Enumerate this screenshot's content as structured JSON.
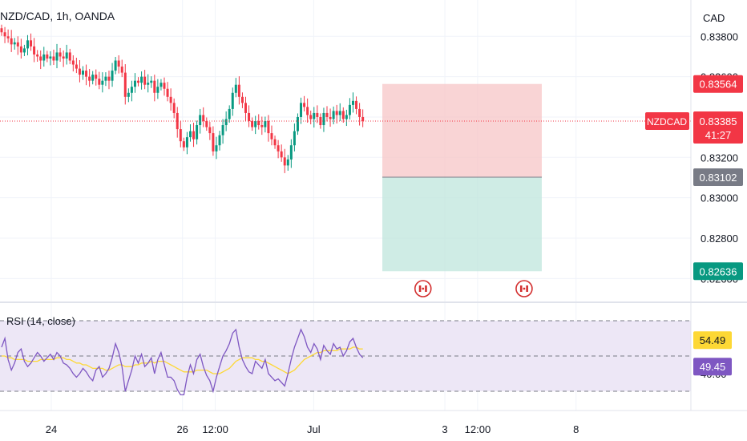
{
  "chart_data": {
    "type": "candlestick",
    "title": "NZD/CAD, 1h, OANDA",
    "currency_label": "CAD",
    "symbol_tag": "NZDCAD",
    "current_price": "0.83385",
    "countdown": "41:27",
    "price_axis": {
      "range": [
        0.8249,
        0.8398
      ],
      "ticks": [
        {
          "value": 0.838,
          "label": "0.83800"
        },
        {
          "value": 0.836,
          "label": "0.83600"
        },
        {
          "value": 0.834,
          "label": "0.83400"
        },
        {
          "value": 0.832,
          "label": "0.83200"
        },
        {
          "value": 0.83,
          "label": "0.83000"
        },
        {
          "value": 0.828,
          "label": "0.82800"
        },
        {
          "value": 0.826,
          "label": "0.82600"
        }
      ]
    },
    "time_axis": {
      "ticks": [
        {
          "t": 0,
          "label": "24"
        },
        {
          "t": 48,
          "label": "26"
        },
        {
          "t": 60,
          "label": "12:00"
        },
        {
          "t": 96,
          "label": "Jul"
        },
        {
          "t": 144,
          "label": "3"
        },
        {
          "t": 156,
          "label": "12:00"
        },
        {
          "t": 192,
          "label": "8"
        }
      ]
    },
    "position": {
      "stop": {
        "value": 0.83564,
        "label": "0.83564"
      },
      "entry": {
        "value": 0.83102,
        "label": "0.83102"
      },
      "target": {
        "value": 0.82636,
        "label": "0.82636"
      },
      "colors": {
        "loss": "#f7c5c7",
        "profit": "#bfe6dc"
      }
    },
    "events": [
      {
        "t": 136,
        "icon": "canada-flag-icon"
      },
      {
        "t": 173,
        "icon": "canada-flag-icon"
      }
    ],
    "closes": [
      0.8382,
      0.838,
      0.8379,
      0.8376,
      0.8377,
      0.8375,
      0.8372,
      0.8374,
      0.8378,
      0.8375,
      0.8371,
      0.837,
      0.8368,
      0.8371,
      0.8369,
      0.837,
      0.8368,
      0.8372,
      0.837,
      0.8369,
      0.8372,
      0.8368,
      0.8366,
      0.8364,
      0.8361,
      0.8363,
      0.836,
      0.8358,
      0.8361,
      0.8359,
      0.8356,
      0.8358,
      0.836,
      0.8358,
      0.8363,
      0.8368,
      0.8365,
      0.8362,
      0.835,
      0.8352,
      0.8355,
      0.8358,
      0.8357,
      0.836,
      0.8356,
      0.8357,
      0.8358,
      0.8352,
      0.8355,
      0.8357,
      0.8354,
      0.835,
      0.8347,
      0.8342,
      0.8334,
      0.8328,
      0.8325,
      0.833,
      0.8333,
      0.8329,
      0.8336,
      0.8341,
      0.8338,
      0.8335,
      0.8332,
      0.8323,
      0.8326,
      0.8331,
      0.8336,
      0.8339,
      0.8344,
      0.8352,
      0.8356,
      0.835,
      0.8347,
      0.8342,
      0.8338,
      0.8335,
      0.8338,
      0.8336,
      0.8335,
      0.8338,
      0.8332,
      0.8329,
      0.8326,
      0.8323,
      0.832,
      0.8316,
      0.8319,
      0.8326,
      0.8333,
      0.834,
      0.8347,
      0.8345,
      0.8341,
      0.8339,
      0.8342,
      0.834,
      0.8336,
      0.8342,
      0.834,
      0.8339,
      0.8343,
      0.8341,
      0.8343,
      0.8339,
      0.8341,
      0.8346,
      0.8348,
      0.8344,
      0.834,
      0.8338
    ],
    "rsi": {
      "label": "RSI (14, close)",
      "range": [
        20,
        80
      ],
      "bands": [
        30,
        70
      ],
      "midline": 50,
      "ticks": [
        {
          "value": 40,
          "label": "40.00"
        },
        {
          "value": 60,
          "label": "60.00"
        }
      ],
      "value_label": "49.45",
      "ma_label": "54.49",
      "values": [
        55,
        60,
        48,
        42,
        46,
        52,
        54,
        47,
        44,
        46,
        49,
        52,
        50,
        47,
        49,
        51,
        48,
        52,
        50,
        46,
        45,
        43,
        40,
        38,
        40,
        43,
        41,
        38,
        36,
        42,
        44,
        38,
        40,
        43,
        49,
        57,
        52,
        44,
        30,
        36,
        42,
        50,
        46,
        51,
        44,
        46,
        49,
        40,
        48,
        52,
        45,
        38,
        38,
        36,
        31,
        28,
        28,
        38,
        45,
        40,
        48,
        51,
        44,
        39,
        36,
        30,
        38,
        44,
        50,
        53,
        57,
        63,
        65,
        55,
        48,
        44,
        41,
        40,
        47,
        45,
        43,
        48,
        40,
        38,
        36,
        37,
        35,
        33,
        40,
        48,
        55,
        60,
        65,
        61,
        55,
        52,
        57,
        54,
        48,
        56,
        53,
        51,
        57,
        54,
        55,
        50,
        53,
        58,
        60,
        55,
        51,
        49
      ],
      "ma": [
        50,
        50,
        49,
        49,
        48,
        48,
        48,
        48,
        47,
        47,
        47,
        47,
        48,
        48,
        48,
        48,
        48,
        49,
        49,
        49,
        48,
        48,
        47,
        46,
        46,
        45,
        45,
        44,
        43,
        43,
        43,
        43,
        42,
        42,
        43,
        44,
        45,
        45,
        44,
        44,
        44,
        45,
        45,
        46,
        46,
        46,
        47,
        46,
        47,
        47,
        47,
        46,
        45,
        44,
        43,
        42,
        41,
        41,
        41,
        41,
        42,
        42,
        42,
        42,
        41,
        40,
        40,
        40,
        41,
        42,
        43,
        45,
        47,
        48,
        49,
        49,
        49,
        49,
        48,
        48,
        47,
        47,
        46,
        45,
        44,
        43,
        42,
        41,
        40,
        41,
        42,
        44,
        46,
        48,
        49,
        50,
        51,
        52,
        52,
        53,
        53,
        53,
        53,
        53,
        54,
        54,
        54,
        54,
        55,
        55,
        54,
        54
      ]
    },
    "colors": {
      "up": "#089981",
      "down": "#f23645",
      "rsi": "#7e57c2",
      "rsi_ma": "#fdd835",
      "rsi_bg": "#ede7f6",
      "entry_tag": "#787b86"
    }
  }
}
